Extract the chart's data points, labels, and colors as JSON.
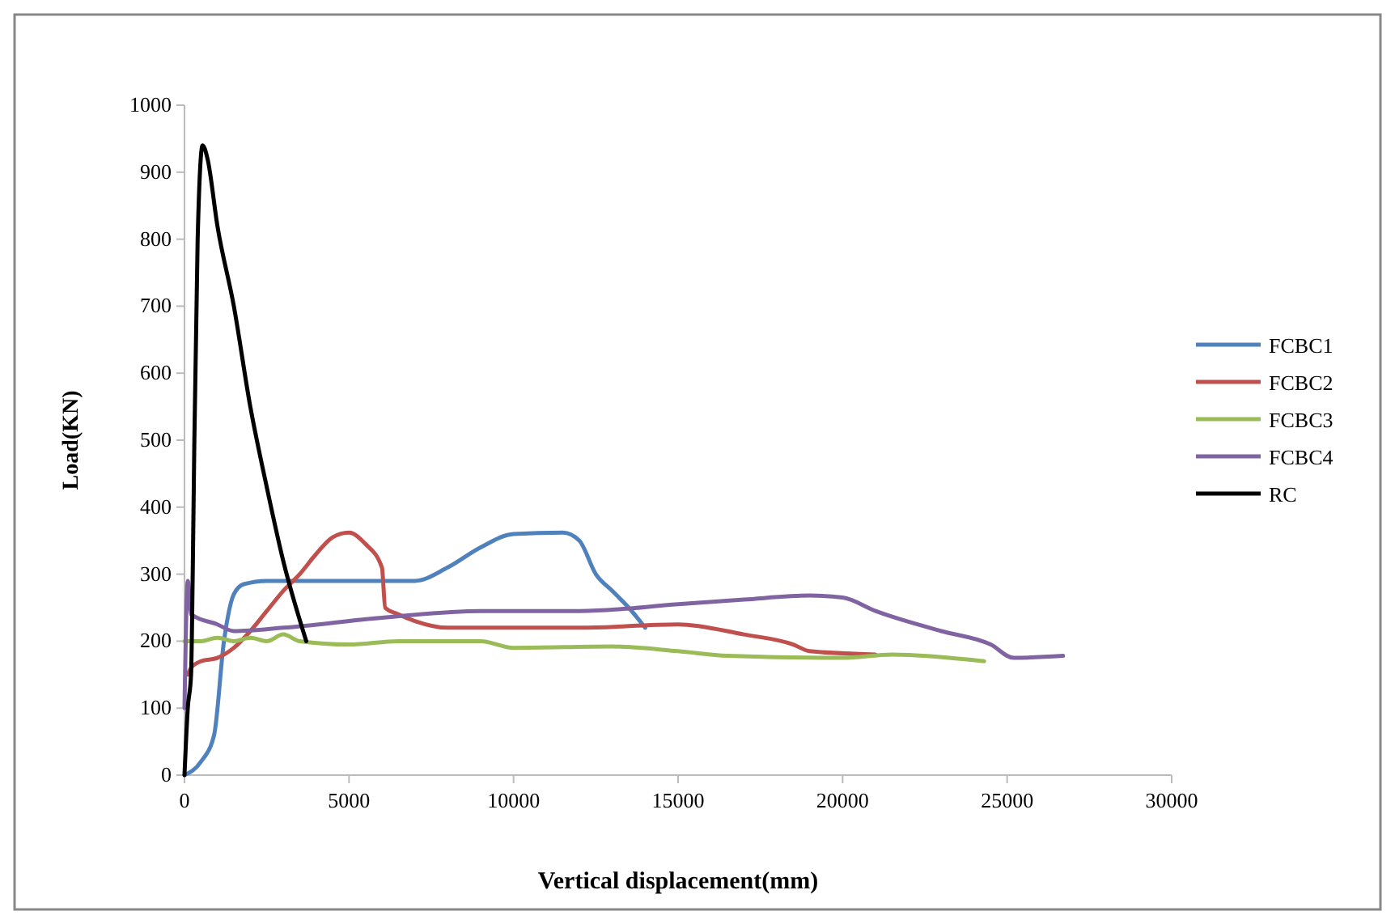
{
  "chart_data": {
    "type": "line",
    "xlabel": "Vertical displacement(mm)",
    "ylabel": "Load(KN)",
    "xlim": [
      0,
      30000
    ],
    "xticks": [
      0,
      5000,
      10000,
      15000,
      20000,
      25000,
      30000
    ],
    "ylim": [
      0,
      1000
    ],
    "yticks": [
      0,
      100,
      200,
      300,
      400,
      500,
      600,
      700,
      800,
      900,
      1000
    ],
    "grid": false,
    "legend": "right",
    "marker": "none",
    "line_style": "solid",
    "series": [
      {
        "name": "FCBC1",
        "color": "#4f81bd",
        "x": [
          0,
          500,
          900,
          1200,
          1500,
          1800,
          2500,
          5000,
          7000,
          8000,
          9000,
          10000,
          11500,
          12000,
          12500,
          13000,
          13500,
          14000
        ],
        "values": [
          0,
          20,
          60,
          200,
          270,
          285,
          290,
          290,
          290,
          310,
          340,
          360,
          362,
          350,
          300,
          275,
          250,
          220
        ]
      },
      {
        "name": "FCBC2",
        "color": "#c0504d",
        "x": [
          100,
          200,
          500,
          1000,
          1500,
          2000,
          2500,
          3000,
          3500,
          4000,
          4500,
          5000,
          5500,
          6000,
          6100,
          6500,
          7000,
          8000,
          10000,
          12000,
          15000,
          17000,
          18500,
          19000,
          21000
        ],
        "values": [
          150,
          160,
          170,
          175,
          190,
          215,
          245,
          275,
          300,
          330,
          355,
          362,
          345,
          310,
          250,
          240,
          230,
          220,
          220,
          220,
          225,
          210,
          195,
          185,
          180
        ]
      },
      {
        "name": "FCBC3",
        "color": "#9bbb59",
        "x": [
          0,
          500,
          1000,
          1500,
          2000,
          2500,
          3000,
          3500,
          5000,
          6500,
          9000,
          10000,
          13000,
          15000,
          16500,
          20000,
          21500,
          24300
        ],
        "values": [
          200,
          200,
          205,
          200,
          205,
          200,
          210,
          200,
          195,
          200,
          200,
          190,
          192,
          185,
          178,
          175,
          180,
          170
        ]
      },
      {
        "name": "FCBC4",
        "color": "#8064a2",
        "x": [
          0,
          100,
          200,
          1000,
          1500,
          3000,
          6000,
          9000,
          12000,
          15000,
          17000,
          19000,
          20000,
          21000,
          23000,
          24500,
          25200,
          26700
        ],
        "values": [
          100,
          290,
          240,
          225,
          215,
          220,
          235,
          245,
          245,
          255,
          262,
          268,
          265,
          245,
          215,
          195,
          175,
          178
        ]
      },
      {
        "name": "RC",
        "color": "#000000",
        "x": [
          0,
          100,
          200,
          250,
          300,
          400,
          550,
          700,
          1000,
          1500,
          2000,
          2500,
          3000,
          3700
        ],
        "values": [
          0,
          100,
          150,
          300,
          500,
          800,
          940,
          920,
          820,
          700,
          550,
          430,
          320,
          200
        ]
      }
    ]
  }
}
